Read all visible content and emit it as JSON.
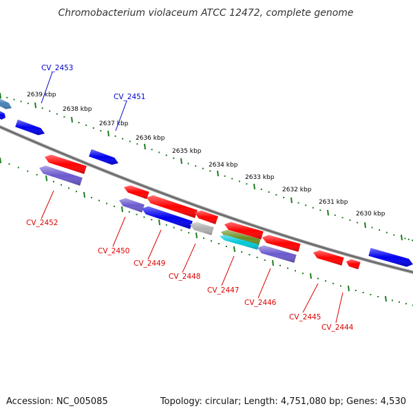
{
  "title": "Chromobacterium violaceum ATCC 12472, complete genome",
  "footer": {
    "accession": "Accession: NC_005085",
    "summary": "Topology: circular; Length: 4,751,080 bp; Genes: 4,530"
  },
  "scale_labels": [
    "2639 kbp",
    "2638 kbp",
    "2637 kbp",
    "2636 kbp",
    "2635 kbp",
    "2634 kbp",
    "2633 kbp",
    "2632 kbp",
    "2631 kbp",
    "2630 kbp"
  ],
  "colors": {
    "backbone": "#777777",
    "tick_green": "#1a7a1a",
    "forward_label": "#0000cc",
    "reverse_label": "#dd0000",
    "red": "#ff0000",
    "blue": "#0000ee",
    "lavender": "#6a5acd",
    "grey": "#b0b0b0",
    "olive": "#6b8e23",
    "cyan": "#00c8d8",
    "steel": "#4682b4"
  },
  "labels": {
    "forward": [
      "CV_2453",
      "CV_2451"
    ],
    "reverse": [
      "CV_2452",
      "CV_2450",
      "CV_2449",
      "CV_2448",
      "CV_2447",
      "CV_2446",
      "CV_2445",
      "CV_2444"
    ]
  }
}
